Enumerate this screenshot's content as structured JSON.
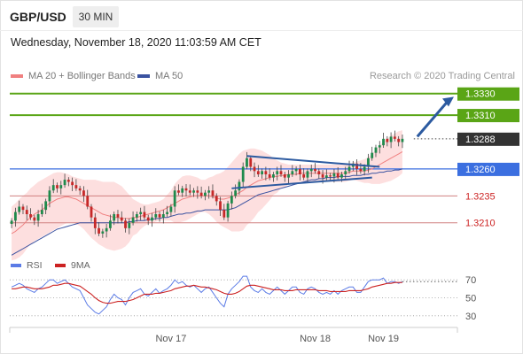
{
  "header": {
    "symbol": "GBP/USD",
    "timeframe": "30 MIN",
    "datetime": "Wednesday, November 18, 2020 11:03:59 AM CET"
  },
  "legend": {
    "ma20": "MA 20 + Bollinger Bands",
    "ma50": "MA 50",
    "credit": "Research © 2020 Trading Central"
  },
  "rsi_legend": {
    "rsi": "RSI",
    "ma9": "9MA"
  },
  "colors": {
    "resistance": "#5aa516",
    "pivot": "#3b6fe0",
    "support": "#d08080",
    "support_text": "#cc2222",
    "bollinger_fill": "#fdd9d9",
    "ma20": "#f08080",
    "ma50": "#3a52a0",
    "candle_up": "#1f8a4c",
    "candle_down": "#c62828",
    "arrow": "#2c5aa0",
    "rsi": "#5b7be6",
    "rsi_ma": "#cc2222",
    "last_price_bg": "#333333"
  },
  "chart_data": {
    "type": "candlestick",
    "price_ylim": [
      1.3195,
      1.3338
    ],
    "levels": [
      {
        "value": 1.333,
        "label": "1.3330",
        "kind": "resistance"
      },
      {
        "value": 1.331,
        "label": "1.3310",
        "kind": "resistance"
      },
      {
        "value": 1.3288,
        "label": "1.3288",
        "kind": "last"
      },
      {
        "value": 1.326,
        "label": "1.3260",
        "kind": "pivot"
      },
      {
        "value": 1.3235,
        "label": "1.3235",
        "kind": "support"
      },
      {
        "value": 1.321,
        "label": "1.3210",
        "kind": "support"
      }
    ],
    "x_ticks": [
      "Nov 17",
      "Nov 18",
      "Nov 19"
    ],
    "x_tick_index": [
      42,
      80,
      98
    ],
    "x_count": 118,
    "last_candle_index": 106,
    "close": [
      1.3212,
      1.322,
      1.3225,
      1.3222,
      1.3218,
      1.3215,
      1.3212,
      1.3218,
      1.3222,
      1.323,
      1.324,
      1.3245,
      1.3242,
      1.3245,
      1.325,
      1.3248,
      1.3245,
      1.3242,
      1.324,
      1.3235,
      1.3225,
      1.3215,
      1.3205,
      1.32,
      1.3202,
      1.3205,
      1.3212,
      1.3218,
      1.3215,
      1.3212,
      1.3205,
      1.321,
      1.3215,
      1.3218,
      1.322,
      1.3215,
      1.3212,
      1.3215,
      1.3218,
      1.3215,
      1.3218,
      1.322,
      1.3225,
      1.324,
      1.3238,
      1.3242,
      1.324,
      1.3238,
      1.324,
      1.3238,
      1.3235,
      1.3238,
      1.324,
      1.3235,
      1.323,
      1.3222,
      1.3215,
      1.3228,
      1.3235,
      1.324,
      1.3248,
      1.3262,
      1.327,
      1.3262,
      1.3258,
      1.3255,
      1.3258,
      1.3255,
      1.3252,
      1.3255,
      1.3258,
      1.3255,
      1.3252,
      1.3255,
      1.3258,
      1.326,
      1.3255,
      1.3252,
      1.3258,
      1.326,
      1.3258,
      1.3255,
      1.3252,
      1.3254,
      1.3253,
      1.3256,
      1.3252,
      1.3255,
      1.3258,
      1.3262,
      1.3265,
      1.326,
      1.3258,
      1.3262,
      1.327,
      1.3275,
      1.328,
      1.3282,
      1.3288,
      1.3285,
      1.329,
      1.3288,
      1.3285,
      1.3288
    ],
    "ma20": [
      1.32,
      1.3202,
      1.3205,
      1.3208,
      1.3212,
      1.3215,
      1.3218,
      1.322,
      1.3222,
      1.3225,
      1.3228,
      1.323,
      1.3232,
      1.3233,
      1.3234,
      1.3234,
      1.3233,
      1.3232,
      1.323,
      1.3228,
      1.3226,
      1.3224,
      1.3222,
      1.322,
      1.3218,
      1.3217,
      1.3216,
      1.3215,
      1.3215,
      1.3214,
      1.3214,
      1.3214,
      1.3215,
      1.3215,
      1.3216,
      1.3217,
      1.3218,
      1.3219,
      1.322,
      1.3221,
      1.3222,
      1.3224,
      1.3226,
      1.3228,
      1.323,
      1.3232,
      1.3233,
      1.3234,
      1.3235,
      1.3235,
      1.3235,
      1.3235,
      1.3235,
      1.3234,
      1.3233,
      1.3232,
      1.3232,
      1.3233,
      1.3234,
      1.3236,
      1.3238,
      1.324,
      1.3243,
      1.3245,
      1.3247,
      1.3249,
      1.325,
      1.3251,
      1.3252,
      1.3253,
      1.3253,
      1.3254,
      1.3254,
      1.3255,
      1.3255,
      1.3255,
      1.3256,
      1.3256,
      1.3256,
      1.3256,
      1.3256,
      1.3256,
      1.3256,
      1.3256,
      1.3256,
      1.3256,
      1.3256,
      1.3256,
      1.3256,
      1.3257,
      1.3258,
      1.3258,
      1.3258,
      1.3258,
      1.3259,
      1.326,
      1.3262,
      1.3264,
      1.3266,
      1.3268,
      1.327,
      1.3272,
      1.3274,
      1.3276
    ],
    "bb_upper": [
      1.3225,
      1.3228,
      1.3232,
      1.3235,
      1.3238,
      1.3242,
      1.3245,
      1.3248,
      1.325,
      1.3252,
      1.3254,
      1.3256,
      1.3257,
      1.3257,
      1.3256,
      1.3255,
      1.3253,
      1.3252,
      1.3251,
      1.325,
      1.325,
      1.325,
      1.325,
      1.3249,
      1.3248,
      1.3248,
      1.3248,
      1.3248,
      1.3246,
      1.3244,
      1.324,
      1.3236,
      1.3232,
      1.323,
      1.3228,
      1.3227,
      1.3227,
      1.3228,
      1.3229,
      1.323,
      1.3232,
      1.3236,
      1.324,
      1.3246,
      1.325,
      1.3253,
      1.3254,
      1.3254,
      1.3253,
      1.3252,
      1.325,
      1.325,
      1.3252,
      1.3253,
      1.3255,
      1.3256,
      1.3258,
      1.3262,
      1.3266,
      1.327,
      1.3274,
      1.3277,
      1.3278,
      1.3279,
      1.3279,
      1.3278,
      1.3277,
      1.3275,
      1.3273,
      1.327,
      1.3268,
      1.3266,
      1.3265,
      1.3264,
      1.3264,
      1.3264,
      1.3264,
      1.3264,
      1.3264,
      1.3264,
      1.3264,
      1.3264,
      1.3264,
      1.3264,
      1.3264,
      1.3264,
      1.3264,
      1.3264,
      1.3264,
      1.3265,
      1.3266,
      1.3267,
      1.3268,
      1.3269,
      1.3271,
      1.3274,
      1.3278,
      1.3282,
      1.3285,
      1.3288,
      1.3291,
      1.3293,
      1.3295,
      1.3296
    ],
    "bb_lower": [
      1.3175,
      1.3176,
      1.3178,
      1.3181,
      1.3186,
      1.319,
      1.3193,
      1.3195,
      1.3197,
      1.3199,
      1.3201,
      1.3203,
      1.3205,
      1.3207,
      1.3209,
      1.321,
      1.321,
      1.3209,
      1.3207,
      1.3204,
      1.32,
      1.3196,
      1.3193,
      1.319,
      1.3188,
      1.3186,
      1.3185,
      1.3184,
      1.3185,
      1.3186,
      1.3188,
      1.3192,
      1.3198,
      1.32,
      1.3204,
      1.3207,
      1.3209,
      1.321,
      1.3211,
      1.3212,
      1.3212,
      1.3212,
      1.3212,
      1.321,
      1.321,
      1.3211,
      1.3212,
      1.3214,
      1.3216,
      1.3218,
      1.322,
      1.322,
      1.3218,
      1.3215,
      1.3211,
      1.3208,
      1.3206,
      1.3204,
      1.3202,
      1.3202,
      1.3202,
      1.3203,
      1.3208,
      1.3211,
      1.3215,
      1.322,
      1.3223,
      1.3227,
      1.3231,
      1.3236,
      1.3238,
      1.3242,
      1.3243,
      1.3246,
      1.3246,
      1.3246,
      1.3248,
      1.3248,
      1.3248,
      1.3248,
      1.3248,
      1.3248,
      1.3248,
      1.3248,
      1.3248,
      1.3248,
      1.3248,
      1.3248,
      1.3248,
      1.3249,
      1.325,
      1.3249,
      1.3248,
      1.3247,
      1.3247,
      1.3246,
      1.3246,
      1.3246,
      1.3247,
      1.3248,
      1.3249,
      1.3251,
      1.3253,
      1.3256
    ],
    "ma50": [
      1.318,
      1.3182,
      1.3184,
      1.3186,
      1.3188,
      1.319,
      1.3192,
      1.3194,
      1.3196,
      1.3198,
      1.32,
      1.3202,
      1.3204,
      1.3205,
      1.3206,
      1.3207,
      1.3208,
      1.3209,
      1.321,
      1.321,
      1.321,
      1.321,
      1.321,
      1.321,
      1.321,
      1.321,
      1.321,
      1.321,
      1.321,
      1.321,
      1.321,
      1.3211,
      1.3211,
      1.3212,
      1.3212,
      1.3212,
      1.3213,
      1.3213,
      1.3214,
      1.3214,
      1.3215,
      1.3215,
      1.3216,
      1.3217,
      1.3218,
      1.3218,
      1.3219,
      1.3219,
      1.322,
      1.3221,
      1.3221,
      1.3222,
      1.3222,
      1.3222,
      1.3222,
      1.3222,
      1.3222,
      1.3222,
      1.3223,
      1.3224,
      1.3226,
      1.3228,
      1.323,
      1.3232,
      1.3234,
      1.3236,
      1.3237,
      1.3238,
      1.3239,
      1.324,
      1.3241,
      1.3242,
      1.3243,
      1.3244,
      1.3245,
      1.3246,
      1.3247,
      1.3248,
      1.3249,
      1.325,
      1.325,
      1.3251,
      1.3251,
      1.3252,
      1.3252,
      1.3252,
      1.3253,
      1.3253,
      1.3253,
      1.3253,
      1.3254,
      1.3254,
      1.3254,
      1.3255,
      1.3255,
      1.3256,
      1.3256,
      1.3257,
      1.3257,
      1.3258,
      1.3258,
      1.3259,
      1.3259,
      1.326
    ],
    "rsi_ylim": [
      20,
      80
    ],
    "rsi_ticks": [
      70,
      50,
      30
    ],
    "rsi": [
      62,
      64,
      66,
      64,
      60,
      58,
      56,
      60,
      62,
      66,
      70,
      70,
      66,
      68,
      70,
      66,
      62,
      60,
      58,
      50,
      42,
      38,
      34,
      32,
      36,
      40,
      48,
      54,
      50,
      48,
      42,
      50,
      56,
      58,
      60,
      54,
      52,
      56,
      60,
      55,
      58,
      60,
      64,
      70,
      66,
      68,
      64,
      62,
      64,
      60,
      56,
      60,
      62,
      56,
      50,
      44,
      40,
      54,
      60,
      64,
      68,
      74,
      74,
      62,
      58,
      56,
      60,
      56,
      54,
      58,
      62,
      58,
      54,
      58,
      62,
      62,
      56,
      54,
      60,
      62,
      60,
      56,
      54,
      56,
      54,
      58,
      54,
      58,
      60,
      62,
      62,
      56,
      56,
      62,
      68,
      70,
      70,
      70,
      72,
      66,
      68,
      68,
      66,
      68
    ],
    "rsi_ma": [
      60,
      60,
      61,
      62,
      62,
      61,
      60,
      60,
      60,
      61,
      62,
      64,
      64,
      65,
      66,
      66,
      65,
      64,
      63,
      60,
      57,
      54,
      50,
      47,
      45,
      44,
      44,
      45,
      46,
      46,
      46,
      47,
      48,
      50,
      52,
      54,
      54,
      54,
      55,
      55,
      56,
      57,
      58,
      60,
      61,
      62,
      63,
      63,
      64,
      63,
      62,
      62,
      61,
      60,
      59,
      57,
      55,
      54,
      54,
      55,
      57,
      60,
      63,
      64,
      64,
      63,
      62,
      61,
      60,
      59,
      59,
      59,
      58,
      58,
      58,
      59,
      59,
      59,
      59,
      59,
      59,
      58,
      58,
      58,
      57,
      57,
      57,
      57,
      57,
      58,
      58,
      58,
      58,
      59,
      60,
      62,
      63,
      64,
      65,
      66,
      66,
      67,
      67,
      67
    ]
  }
}
